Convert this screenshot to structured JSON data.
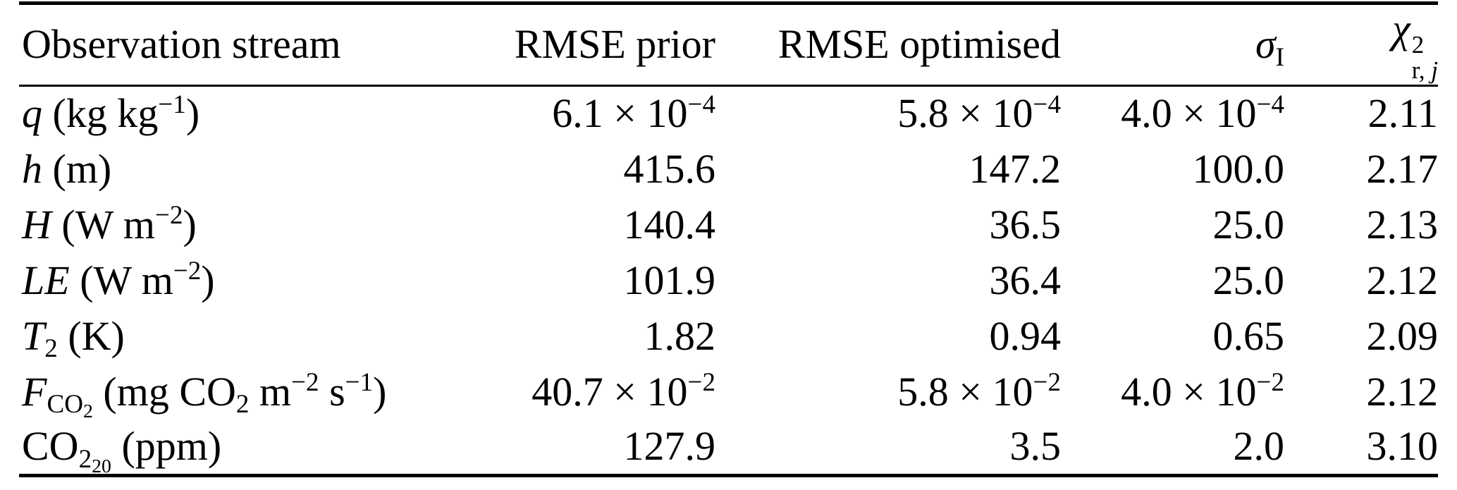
{
  "colors": {
    "text": "#000000",
    "background": "#ffffff",
    "rule": "#000000"
  },
  "table": {
    "columns": [
      {
        "align": "left",
        "label": [
          {
            "t": "Observation stream"
          }
        ]
      },
      {
        "align": "right",
        "label": [
          {
            "t": "RMSE prior"
          }
        ]
      },
      {
        "align": "right",
        "label": [
          {
            "t": "RMSE optimised"
          }
        ]
      },
      {
        "align": "right",
        "label": [
          {
            "t": "σ",
            "s": "i"
          },
          {
            "t": "I",
            "s": "sub"
          }
        ]
      },
      {
        "align": "right",
        "label": [
          {
            "t": "χ",
            "s": "i"
          },
          {
            "s": "stack",
            "sup": "2",
            "sub": [
              {
                "t": "r, "
              },
              {
                "t": "j",
                "s": "i"
              }
            ]
          }
        ]
      }
    ],
    "rows": [
      {
        "cells": [
          [
            {
              "t": "q",
              "s": "i"
            },
            {
              "t": " (kg kg"
            },
            {
              "t": "−1",
              "s": "sup"
            },
            {
              "t": ")"
            }
          ],
          [
            {
              "t": "6.1 × 10"
            },
            {
              "t": "−4",
              "s": "sup"
            }
          ],
          [
            {
              "t": "5.8 × 10"
            },
            {
              "t": "−4",
              "s": "sup"
            }
          ],
          [
            {
              "t": "4.0 × 10"
            },
            {
              "t": "−4",
              "s": "sup"
            }
          ],
          [
            {
              "t": "2.11"
            }
          ]
        ]
      },
      {
        "cells": [
          [
            {
              "t": "h",
              "s": "i"
            },
            {
              "t": " (m)"
            }
          ],
          [
            {
              "t": "415.6"
            }
          ],
          [
            {
              "t": "147.2"
            }
          ],
          [
            {
              "t": "100.0"
            }
          ],
          [
            {
              "t": "2.17"
            }
          ]
        ]
      },
      {
        "cells": [
          [
            {
              "t": "H",
              "s": "i"
            },
            {
              "t": " (W m"
            },
            {
              "t": "−2",
              "s": "sup"
            },
            {
              "t": ")"
            }
          ],
          [
            {
              "t": "140.4"
            }
          ],
          [
            {
              "t": "36.5"
            }
          ],
          [
            {
              "t": "25.0"
            }
          ],
          [
            {
              "t": "2.13"
            }
          ]
        ]
      },
      {
        "cells": [
          [
            {
              "t": "LE",
              "s": "i"
            },
            {
              "t": " (W m"
            },
            {
              "t": "−2",
              "s": "sup"
            },
            {
              "t": ")"
            }
          ],
          [
            {
              "t": "101.9"
            }
          ],
          [
            {
              "t": "36.4"
            }
          ],
          [
            {
              "t": "25.0"
            }
          ],
          [
            {
              "t": "2.12"
            }
          ]
        ]
      },
      {
        "cells": [
          [
            {
              "t": "T",
              "s": "i"
            },
            {
              "t": "2",
              "s": "sub"
            },
            {
              "t": " (K)"
            }
          ],
          [
            {
              "t": "1.82"
            }
          ],
          [
            {
              "t": "0.94"
            }
          ],
          [
            {
              "t": "0.65"
            }
          ],
          [
            {
              "t": "2.09"
            }
          ]
        ]
      },
      {
        "cells": [
          [
            {
              "t": "F",
              "s": "i"
            },
            {
              "t": "CO",
              "s": "sub"
            },
            {
              "t": "2",
              "s": "subsub"
            },
            {
              "t": " (mg CO"
            },
            {
              "t": "2",
              "s": "sub"
            },
            {
              "t": " m"
            },
            {
              "t": "−2",
              "s": "sup"
            },
            {
              "t": " s"
            },
            {
              "t": "−1",
              "s": "sup"
            },
            {
              "t": ")"
            }
          ],
          [
            {
              "t": "40.7 × 10"
            },
            {
              "t": "−2",
              "s": "sup"
            }
          ],
          [
            {
              "t": "5.8 × 10"
            },
            {
              "t": "−2",
              "s": "sup"
            }
          ],
          [
            {
              "t": "4.0 × 10"
            },
            {
              "t": "−2",
              "s": "sup"
            }
          ],
          [
            {
              "t": "2.12"
            }
          ]
        ]
      },
      {
        "cells": [
          [
            {
              "t": "CO"
            },
            {
              "t": "2",
              "s": "sub"
            },
            {
              "t": "20",
              "s": "subsub"
            },
            {
              "t": " (ppm)"
            }
          ],
          [
            {
              "t": "127.9"
            }
          ],
          [
            {
              "t": "3.5"
            }
          ],
          [
            {
              "t": "2.0"
            }
          ],
          [
            {
              "t": "3.10"
            }
          ]
        ]
      }
    ]
  }
}
